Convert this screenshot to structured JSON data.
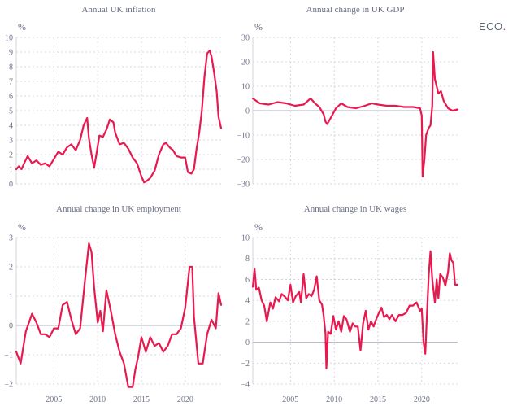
{
  "brand": {
    "name": "ECO",
    "dot": "."
  },
  "colors": {
    "line": "#e8194f",
    "grid": "#c9ccd6",
    "text": "#6b6f86",
    "zero": "#aeb3c2"
  },
  "chart_data": [
    {
      "type": "line",
      "title": "Annual UK inflation",
      "ylabel": "%",
      "xlim": [
        2000.7,
        2024.1
      ],
      "ylim": [
        0,
        10
      ],
      "yticks": [
        0,
        1,
        2,
        3,
        4,
        5,
        6,
        7,
        8,
        9,
        10
      ],
      "xticks": [
        2005,
        2010,
        2015,
        2020
      ],
      "show_xtick_labels": false,
      "series": [
        {
          "x": [
            2000.7,
            2001.0,
            2001.3,
            2001.6,
            2002.0,
            2002.5,
            2003.0,
            2003.5,
            2004.0,
            2004.5,
            2005.0,
            2005.5,
            2006.0,
            2006.5,
            2007.0,
            2007.5,
            2008.0,
            2008.4,
            2008.8,
            2009.0,
            2009.3,
            2009.6,
            2009.9,
            2010.2,
            2010.6,
            2011.0,
            2011.4,
            2011.8,
            2012.0,
            2012.5,
            2013.0,
            2013.5,
            2014.0,
            2014.5,
            2015.0,
            2015.3,
            2015.6,
            2016.0,
            2016.5,
            2017.0,
            2017.5,
            2017.8,
            2018.2,
            2018.6,
            2019.0,
            2019.5,
            2020.0,
            2020.3,
            2020.7,
            2021.0,
            2021.3,
            2021.6,
            2021.9,
            2022.2,
            2022.5,
            2022.8,
            2023.0,
            2023.3,
            2023.6,
            2023.8,
            2024.1
          ],
          "values": [
            1.0,
            1.2,
            1.0,
            1.4,
            1.9,
            1.4,
            1.6,
            1.3,
            1.4,
            1.2,
            1.7,
            2.2,
            2.0,
            2.5,
            2.7,
            2.3,
            3.0,
            4.0,
            4.5,
            3.1,
            2.0,
            1.1,
            2.2,
            3.3,
            3.2,
            3.7,
            4.4,
            4.2,
            3.5,
            2.7,
            2.8,
            2.4,
            1.8,
            1.4,
            0.5,
            0.1,
            0.2,
            0.4,
            0.9,
            2.0,
            2.7,
            2.8,
            2.5,
            2.3,
            1.9,
            1.8,
            1.8,
            0.8,
            0.7,
            1.0,
            2.4,
            3.5,
            5.0,
            7.3,
            8.9,
            9.1,
            8.7,
            7.6,
            6.3,
            4.6,
            3.8
          ]
        }
      ]
    },
    {
      "type": "line",
      "title": "Annual change in UK GDP",
      "ylabel": "%",
      "xlim": [
        2000.7,
        2024.1
      ],
      "ylim": [
        -30,
        30
      ],
      "yticks": [
        -30,
        -20,
        -10,
        0,
        10,
        20,
        30
      ],
      "xticks": [
        2005,
        2010,
        2015,
        2020
      ],
      "show_xtick_labels": false,
      "series": [
        {
          "x": [
            2000.7,
            2001.5,
            2002.5,
            2003.5,
            2004.5,
            2005.5,
            2006.5,
            2007.3,
            2007.8,
            2008.3,
            2008.8,
            2009.0,
            2009.2,
            2009.6,
            2010.2,
            2010.8,
            2011.5,
            2012.5,
            2013.5,
            2014.3,
            2015.0,
            2016.0,
            2017.0,
            2018.0,
            2019.0,
            2019.8,
            2020.0,
            2020.1,
            2020.3,
            2020.5,
            2020.8,
            2021.0,
            2021.2,
            2021.3,
            2021.5,
            2021.9,
            2022.2,
            2022.5,
            2023.0,
            2023.5,
            2024.1
          ],
          "values": [
            5,
            3,
            2.5,
            3.5,
            3,
            2,
            2.5,
            5,
            3,
            1.5,
            -1.5,
            -4.5,
            -5.5,
            -3,
            1,
            3,
            1.5,
            1,
            2,
            3,
            2.5,
            2,
            2,
            1.5,
            1.5,
            1,
            -2,
            -27,
            -20,
            -10,
            -7,
            -6,
            2,
            24,
            13,
            7,
            8,
            4,
            1,
            0,
            0.5
          ]
        }
      ]
    },
    {
      "type": "line",
      "title": "Annual change in UK employment",
      "ylabel": "%",
      "xlim": [
        2000.7,
        2024.1
      ],
      "ylim": [
        -2,
        3
      ],
      "yticks": [
        -2,
        -1,
        0,
        1,
        2,
        3
      ],
      "xticks": [
        2005,
        2010,
        2015,
        2020
      ],
      "show_xtick_labels": true,
      "series": [
        {
          "x": [
            2000.7,
            2001.2,
            2001.8,
            2002.5,
            2003.0,
            2003.5,
            2004.0,
            2004.5,
            2005.0,
            2005.5,
            2006.0,
            2006.5,
            2007.0,
            2007.5,
            2008.0,
            2008.5,
            2009.0,
            2009.3,
            2009.6,
            2010.0,
            2010.3,
            2010.6,
            2011.0,
            2011.5,
            2012.0,
            2012.5,
            2013.0,
            2013.5,
            2014.0,
            2014.3,
            2014.6,
            2015.0,
            2015.5,
            2016.0,
            2016.5,
            2017.0,
            2017.5,
            2018.0,
            2018.5,
            2019.0,
            2019.5,
            2020.0,
            2020.5,
            2020.8,
            2021.0,
            2021.5,
            2022.0,
            2022.5,
            2023.0,
            2023.5,
            2023.8,
            2024.1
          ],
          "values": [
            -0.9,
            -1.3,
            -0.2,
            0.4,
            0.1,
            -0.3,
            -0.3,
            -0.4,
            -0.1,
            -0.1,
            0.7,
            0.8,
            0.2,
            -0.3,
            -0.1,
            1.4,
            2.8,
            2.5,
            1.3,
            0.1,
            0.5,
            -0.2,
            1.2,
            0.5,
            -0.3,
            -0.9,
            -1.3,
            -2.1,
            -2.1,
            -1.5,
            -1.1,
            -0.4,
            -0.9,
            -0.4,
            -0.7,
            -0.6,
            -0.9,
            -0.7,
            -0.3,
            -0.3,
            -0.1,
            0.6,
            2.0,
            2.0,
            0.3,
            -1.3,
            -1.3,
            -0.3,
            0.2,
            -0.1,
            1.1,
            0.7
          ]
        }
      ]
    },
    {
      "type": "line",
      "title": "Annual change in UK wages",
      "ylabel": "%",
      "xlim": [
        2000.7,
        2024.1
      ],
      "ylim": [
        -4,
        10
      ],
      "yticks": [
        -4,
        -2,
        0,
        2,
        4,
        6,
        8,
        10
      ],
      "xticks": [
        2005,
        2010,
        2015,
        2020
      ],
      "show_xtick_labels": true,
      "series": [
        {
          "x": [
            2000.7,
            2000.9,
            2001.1,
            2001.4,
            2001.7,
            2002.0,
            2002.3,
            2002.7,
            2003.0,
            2003.3,
            2003.7,
            2004.0,
            2004.3,
            2004.7,
            2005.0,
            2005.3,
            2005.6,
            2006.0,
            2006.2,
            2006.5,
            2006.8,
            2007.1,
            2007.4,
            2007.7,
            2008.0,
            2008.3,
            2008.6,
            2008.8,
            2009.0,
            2009.1,
            2009.3,
            2009.6,
            2009.9,
            2010.2,
            2010.5,
            2010.8,
            2011.1,
            2011.4,
            2011.8,
            2012.1,
            2012.4,
            2012.7,
            2013.0,
            2013.3,
            2013.6,
            2013.9,
            2014.2,
            2014.5,
            2014.8,
            2015.1,
            2015.4,
            2015.7,
            2016.0,
            2016.3,
            2016.6,
            2017.0,
            2017.4,
            2017.8,
            2018.2,
            2018.6,
            2019.0,
            2019.4,
            2019.8,
            2020.0,
            2020.2,
            2020.4,
            2020.6,
            2020.8,
            2021.0,
            2021.2,
            2021.5,
            2021.7,
            2021.9,
            2022.1,
            2022.4,
            2022.7,
            2023.0,
            2023.2,
            2023.4,
            2023.6,
            2023.8,
            2024.1
          ],
          "values": [
            5.3,
            7.0,
            5.0,
            5.2,
            4.0,
            3.5,
            2.0,
            3.8,
            3.2,
            4.3,
            3.9,
            4.6,
            4.4,
            4.0,
            5.5,
            3.8,
            4.4,
            4.8,
            3.8,
            6.5,
            4.2,
            4.6,
            4.4,
            5.0,
            6.3,
            4.0,
            3.6,
            2.5,
            0.8,
            -2.5,
            1.0,
            0.8,
            2.5,
            1.2,
            2.0,
            1.0,
            2.5,
            2.2,
            1.0,
            1.8,
            1.5,
            1.5,
            -0.8,
            1.8,
            3.0,
            1.2,
            2.0,
            1.5,
            2.2,
            2.8,
            3.3,
            2.4,
            2.6,
            2.2,
            2.6,
            2.0,
            2.6,
            2.6,
            2.8,
            3.5,
            3.5,
            3.8,
            3.0,
            3.2,
            0.0,
            -1.1,
            2.8,
            6.5,
            8.7,
            6.0,
            3.8,
            6.0,
            4.2,
            6.5,
            6.2,
            5.4,
            6.7,
            8.5,
            7.8,
            7.6,
            5.5,
            5.5
          ]
        }
      ]
    }
  ]
}
